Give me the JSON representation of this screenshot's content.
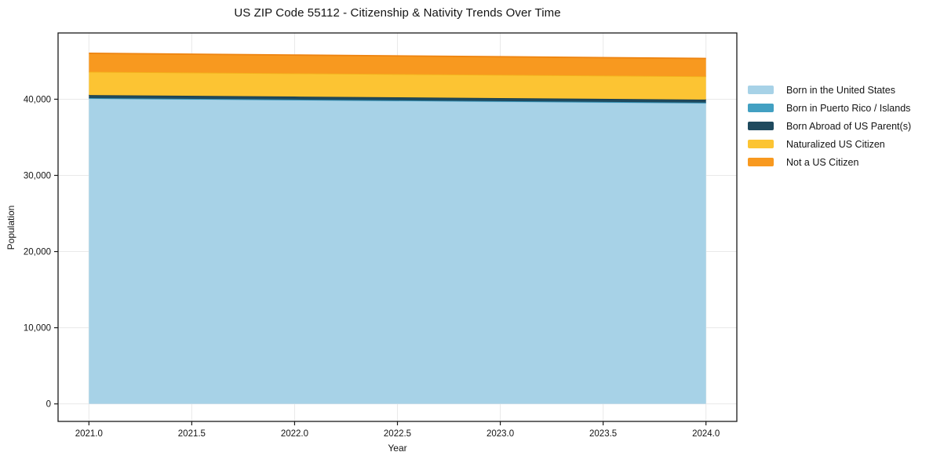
{
  "chart_data": {
    "type": "area",
    "stacked": true,
    "title": "US ZIP Code 55112 - Citizenship & Nativity Trends Over Time",
    "xlabel": "Year",
    "ylabel": "Population",
    "x": [
      2021,
      2022,
      2023,
      2024
    ],
    "series": [
      {
        "name": "Born in the United States",
        "color": "#a7d2e7",
        "edge": "#97c6de",
        "values": [
          40100,
          39900,
          39700,
          39500
        ]
      },
      {
        "name": "Born in Puerto Rico / Islands",
        "color": "#42a0c2",
        "edge": "#3391b5",
        "values": [
          50,
          50,
          50,
          50
        ]
      },
      {
        "name": "Born Abroad of US Parent(s)",
        "color": "#1f4a5e",
        "edge": "#193d4e",
        "values": [
          400,
          400,
          400,
          400
        ]
      },
      {
        "name": "Naturalized US Citizen",
        "color": "#fcc433",
        "edge": "#f3b31c",
        "values": [
          3050,
          3050,
          3050,
          3050
        ]
      },
      {
        "name": "Not a US Citizen",
        "color": "#f8991f",
        "edge": "#ee8410",
        "values": [
          2430,
          2400,
          2380,
          2350
        ]
      }
    ],
    "x_tick_values": [
      2021.0,
      2021.5,
      2022.0,
      2022.5,
      2023.0,
      2023.5,
      2024.0
    ],
    "x_tick_labels": [
      "2021.0",
      "2021.5",
      "2022.0",
      "2022.5",
      "2023.0",
      "2023.5",
      "2024.0"
    ],
    "y_tick_values": [
      0,
      10000,
      20000,
      30000,
      40000
    ],
    "y_tick_labels": [
      "0",
      "10,000",
      "20,000",
      "30,000",
      "40,000"
    ],
    "xlim": [
      2020.85,
      2024.15
    ],
    "ylim": [
      -2300,
      48700
    ],
    "grid": true,
    "grid_color": "#e9e9e9",
    "spine_color": "#1a1a1a",
    "legend_position": "right"
  }
}
